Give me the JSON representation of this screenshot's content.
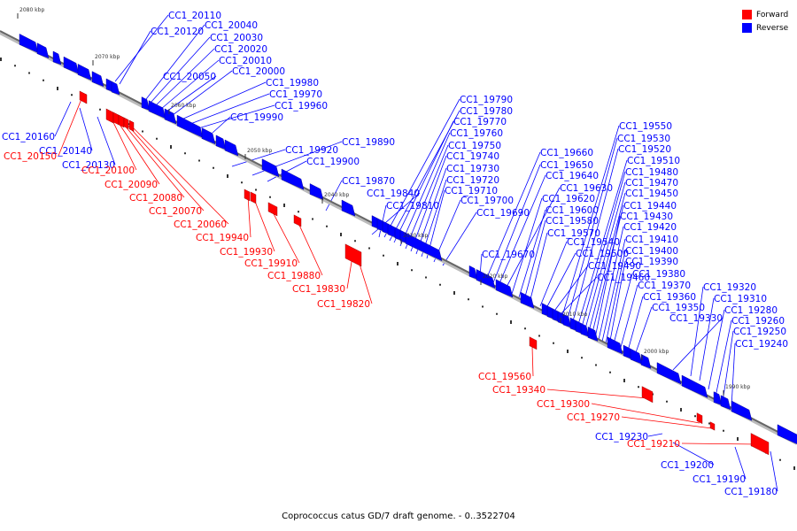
{
  "caption": "Coprococcus catus GD/7 draft genome. - 0..3522704",
  "legend": {
    "forward": {
      "label": "Forward",
      "color": "#ff0000"
    },
    "reverse": {
      "label": "Reverse",
      "color": "#0000ff"
    }
  },
  "colors": {
    "forward": "#ff0000",
    "reverse": "#0000ff",
    "axis": "#777777"
  },
  "ticks": [
    "2080 kbp",
    "2070 kbp",
    "2060 kbp",
    "2050 kbp",
    "2040 kbp",
    "2030 kbp",
    "2020 kbp",
    "2010 kbp",
    "2000 kbp",
    "1990 kbp"
  ],
  "reverse_labels": [
    "CC1_20110",
    "CC1_20120",
    "CC1_20040",
    "CC1_20030",
    "CC1_20020",
    "CC1_20010",
    "CC1_20050",
    "CC1_20000",
    "CC1_19980",
    "CC1_19970",
    "CC1_19960",
    "CC1_19990",
    "CC1_20160",
    "CC1_20140",
    "CC1_20130",
    "CC1_19920",
    "CC1_19890",
    "CC1_19900",
    "CC1_19870",
    "CC1_19840",
    "CC1_19810",
    "CC1_19790",
    "CC1_19780",
    "CC1_19770",
    "CC1_19760",
    "CC1_19750",
    "CC1_19740",
    "CC1_19730",
    "CC1_19720",
    "CC1_19710",
    "CC1_19700",
    "CC1_19690",
    "CC1_19670",
    "CC1_19660",
    "CC1_19650",
    "CC1_19640",
    "CC1_19630",
    "CC1_19620",
    "CC1_19600",
    "CC1_19580",
    "CC1_19570",
    "CC1_19540",
    "CC1_19500",
    "CC1_19490",
    "CC1_19460",
    "CC1_19550",
    "CC1_19530",
    "CC1_19520",
    "CC1_19510",
    "CC1_19480",
    "CC1_19470",
    "CC1_19450",
    "CC1_19440",
    "CC1_19430",
    "CC1_19420",
    "CC1_19410",
    "CC1_19400",
    "CC1_19390",
    "CC1_19380",
    "CC1_19370",
    "CC1_19360",
    "CC1_19350",
    "CC1_19330",
    "CC1_19320",
    "CC1_19310",
    "CC1_19280",
    "CC1_19260",
    "CC1_19250",
    "CC1_19240",
    "CC1_19230",
    "CC1_19200",
    "CC1_19190",
    "CC1_19180"
  ],
  "forward_labels": [
    "CC1_20150",
    "CC1_20100",
    "CC1_20090",
    "CC1_20080",
    "CC1_20070",
    "CC1_20060",
    "CC1_19940",
    "CC1_19930",
    "CC1_19910",
    "CC1_19880",
    "CC1_19830",
    "CC1_19820",
    "CC1_19560",
    "CC1_19340",
    "CC1_19300",
    "CC1_19270",
    "CC1_19210"
  ]
}
